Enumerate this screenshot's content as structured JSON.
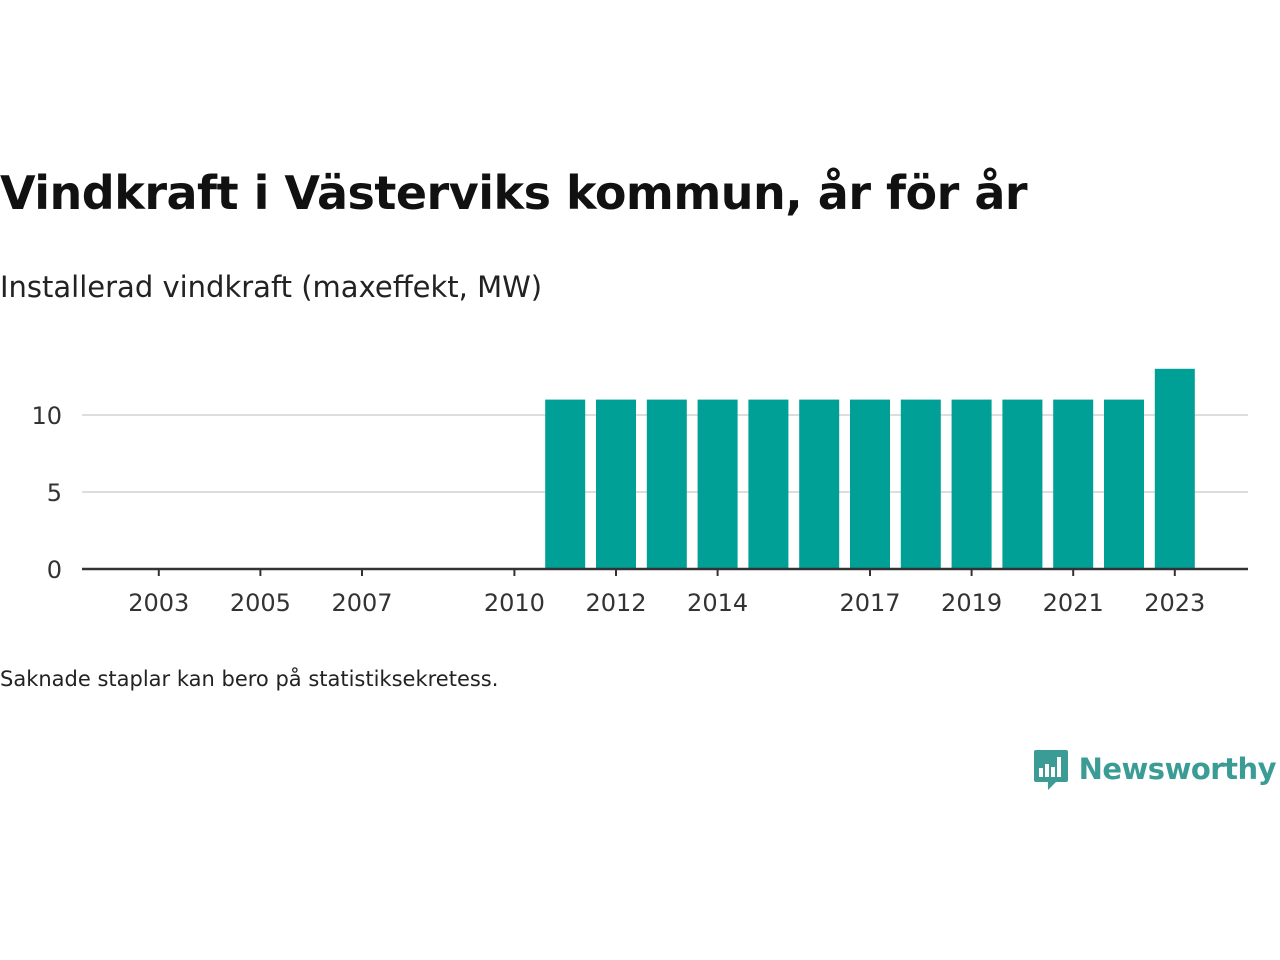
{
  "header": {
    "title": "Vindkraft i Västerviks kommun, år för år",
    "subtitle": "Installerad vindkraft (maxeffekt, MW)"
  },
  "footer": {
    "note": "Saknade staplar kan bero på statistiksekretess.",
    "brand": "Newsworthy"
  },
  "colors": {
    "bar": "#00a096",
    "grid": "#dddddd",
    "axis": "#333333",
    "brand": "#3a9c95"
  },
  "chart_data": {
    "type": "bar",
    "title": "Vindkraft i Västerviks kommun, år för år",
    "subtitle": "Installerad vindkraft (maxeffekt, MW)",
    "xlabel": "",
    "ylabel": "",
    "categories": [
      2002,
      2003,
      2004,
      2005,
      2006,
      2007,
      2008,
      2009,
      2010,
      2011,
      2012,
      2013,
      2014,
      2015,
      2016,
      2017,
      2018,
      2019,
      2020,
      2021,
      2022,
      2023
    ],
    "values": [
      null,
      null,
      null,
      null,
      null,
      null,
      null,
      null,
      null,
      11,
      11,
      11,
      11,
      11,
      11,
      11,
      11,
      11,
      11,
      11,
      11,
      13
    ],
    "x_tick_labels": [
      "2003",
      "2005",
      "2007",
      "2010",
      "2012",
      "2014",
      "2017",
      "2019",
      "2021",
      "2023"
    ],
    "y_ticks": [
      0,
      5,
      10
    ],
    "ylim": [
      0,
      13
    ],
    "grid": true,
    "legend": "none"
  }
}
